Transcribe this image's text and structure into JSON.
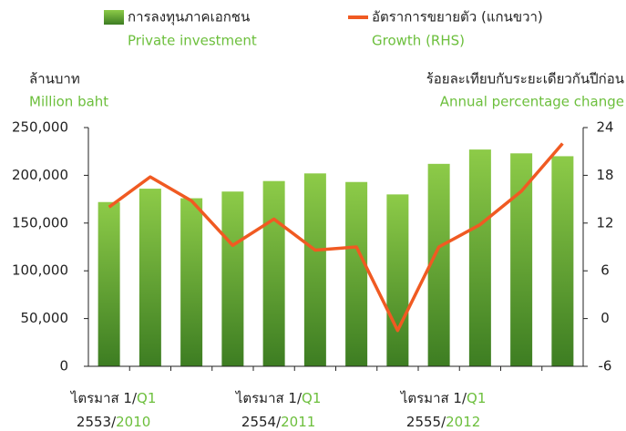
{
  "chart_data": {
    "type": "bar_line",
    "left_axis_label": "ล้านบาท",
    "left_axis_label_en": "Million baht",
    "right_axis_label": "ร้อยละเทียบกับระยะเดียวกันปีก่อน",
    "right_axis_label_en": "Annual percentage change",
    "categories": [
      {
        "quarter": "ไตรมาส 1/",
        "quarter_en": "Q1",
        "year": "2553/",
        "year_en": "2010"
      },
      null,
      null,
      null,
      {
        "quarter": "ไตรมาส 1/",
        "quarter_en": "Q1",
        "year": "2554/",
        "year_en": "2011"
      },
      null,
      null,
      null,
      {
        "quarter": "ไตรมาส 1/",
        "quarter_en": "Q1",
        "year": "2555/",
        "year_en": "2012"
      },
      null,
      null,
      null
    ],
    "series": [
      {
        "name": "การลงทุนภาคเอกชน",
        "name_en": "Private investment",
        "color": "#5aa832",
        "values": [
          172000,
          186000,
          176000,
          183000,
          194000,
          202000,
          193000,
          180000,
          212000,
          227000,
          223000,
          220000
        ]
      },
      {
        "name": "อัตราการขยายตัว (แกนขวา)",
        "name_en": "Growth (RHS)",
        "color": "#f05a22",
        "axis": "y2",
        "values": [
          14,
          17.8,
          14.8,
          9.2,
          12.5,
          8.6,
          9,
          -1.5,
          9,
          11.8,
          16,
          22
        ]
      }
    ],
    "ylim": [
      0,
      250000
    ],
    "yticks": [
      0,
      {
        "value": 50000,
        "label": "50,000"
      },
      {
        "value": 100000,
        "label": "100,000"
      },
      {
        "value": 150000,
        "label": "150,000"
      },
      {
        "value": 200000,
        "label": "200,000"
      },
      {
        "value": 250000,
        "label": "250,000"
      }
    ],
    "y2lim": [
      -6,
      24
    ],
    "y2ticks": [
      -6,
      0,
      6,
      12,
      18,
      24
    ]
  }
}
